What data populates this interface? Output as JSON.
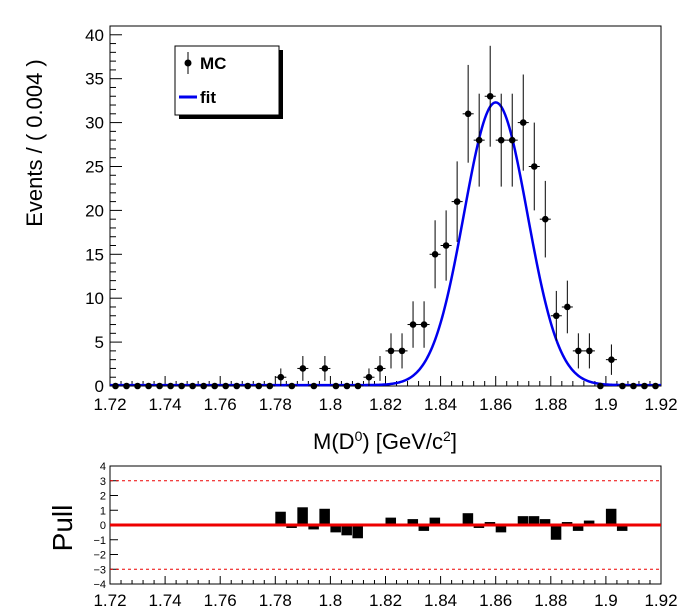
{
  "chart_data": [
    {
      "type": "scatter",
      "panel": "main",
      "xlabel_main": "M(D",
      "xlabel_sup1": "0",
      "xlabel_mid": ") [GeV/c",
      "xlabel_sup2": "2",
      "xlabel_end": "]",
      "ylabel": "Events / ( 0.004 )",
      "xlim": [
        1.72,
        1.92
      ],
      "ylim": [
        0,
        41
      ],
      "xticks": [
        "1.72",
        "1.74",
        "1.76",
        "1.78",
        "1.8",
        "1.82",
        "1.84",
        "1.86",
        "1.88",
        "1.9",
        "1.92"
      ],
      "yticks": [
        "0",
        "5",
        "10",
        "15",
        "20",
        "25",
        "30",
        "35",
        "40"
      ],
      "legend": {
        "placement": "top-left",
        "entries": [
          "MC",
          "fit"
        ]
      },
      "fit_color": "#0000ee",
      "fit": {
        "mean": 1.86,
        "sigma": 0.0115,
        "amplitude": 32.2,
        "baseline": 0.1
      },
      "series": [
        {
          "name": "MC",
          "x": [
            1.722,
            1.726,
            1.73,
            1.734,
            1.738,
            1.742,
            1.746,
            1.75,
            1.754,
            1.758,
            1.762,
            1.766,
            1.77,
            1.774,
            1.778,
            1.782,
            1.786,
            1.79,
            1.794,
            1.798,
            1.802,
            1.806,
            1.81,
            1.814,
            1.818,
            1.822,
            1.826,
            1.83,
            1.834,
            1.838,
            1.842,
            1.846,
            1.85,
            1.854,
            1.858,
            1.862,
            1.866,
            1.87,
            1.874,
            1.878,
            1.882,
            1.886,
            1.89,
            1.894,
            1.898,
            1.902,
            1.906,
            1.91,
            1.914,
            1.918
          ],
          "values": [
            0,
            0,
            0,
            0,
            0,
            0,
            0,
            0,
            0,
            0,
            0,
            0,
            0,
            0,
            0,
            1,
            0,
            2,
            0,
            2,
            0,
            0,
            0,
            1,
            2,
            4,
            4,
            7,
            7,
            15,
            16,
            21,
            31,
            28,
            33,
            28,
            28,
            30,
            25,
            19,
            8,
            9,
            4,
            4,
            0,
            3,
            0,
            0,
            0,
            0
          ]
        }
      ]
    },
    {
      "type": "bar",
      "panel": "pull",
      "ylabel": "Pull",
      "xlim": [
        1.72,
        1.92
      ],
      "ylim": [
        -4,
        4
      ],
      "xticks": [
        "1.72",
        "1.74",
        "1.76",
        "1.78",
        "1.8",
        "1.82",
        "1.84",
        "1.86",
        "1.88",
        "1.9",
        "1.92"
      ],
      "yticks": [
        "4",
        "3",
        "2",
        "1",
        "0",
        "−1",
        "−2",
        "−3",
        "−4"
      ],
      "zero_line_color": "#ee0000",
      "dashed_levels": [
        3,
        -3
      ],
      "x": [
        1.778,
        1.782,
        1.786,
        1.79,
        1.794,
        1.798,
        1.802,
        1.806,
        1.81,
        1.814,
        1.818,
        1.822,
        1.826,
        1.83,
        1.834,
        1.838,
        1.842,
        1.846,
        1.85,
        1.854,
        1.858,
        1.862,
        1.866,
        1.87,
        1.874,
        1.878,
        1.882,
        1.886,
        1.89,
        1.894,
        1.898,
        1.902,
        1.906,
        1.91,
        1.914
      ],
      "values": [
        0,
        0.9,
        -0.2,
        1.2,
        -0.3,
        1.1,
        -0.5,
        -0.7,
        -0.9,
        -0.1,
        0,
        0.5,
        0,
        0.4,
        -0.4,
        0.5,
        -0.1,
        -0.1,
        0.8,
        -0.2,
        0.2,
        -0.5,
        -0.1,
        0.6,
        0.6,
        0.4,
        -1.0,
        0.2,
        -0.4,
        0.3,
        0,
        1.1,
        -0.4,
        -0.1,
        -0.1
      ]
    }
  ]
}
